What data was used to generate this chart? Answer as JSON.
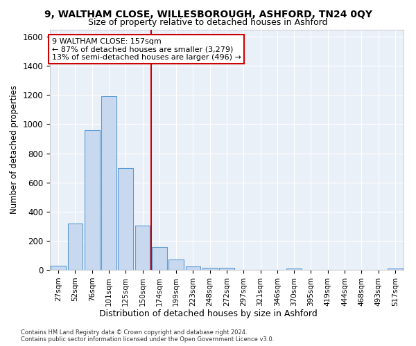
{
  "title1": "9, WALTHAM CLOSE, WILLESBOROUGH, ASHFORD, TN24 0QY",
  "title2": "Size of property relative to detached houses in Ashford",
  "xlabel": "Distribution of detached houses by size in Ashford",
  "ylabel": "Number of detached properties",
  "bar_labels": [
    "27sqm",
    "52sqm",
    "76sqm",
    "101sqm",
    "125sqm",
    "150sqm",
    "174sqm",
    "199sqm",
    "223sqm",
    "248sqm",
    "272sqm",
    "297sqm",
    "321sqm",
    "346sqm",
    "370sqm",
    "395sqm",
    "419sqm",
    "444sqm",
    "468sqm",
    "493sqm",
    "517sqm"
  ],
  "bar_values": [
    30,
    320,
    960,
    1190,
    700,
    305,
    155,
    70,
    25,
    15,
    15,
    0,
    0,
    0,
    10,
    0,
    0,
    0,
    0,
    0,
    10
  ],
  "bar_color": "#c8d9ef",
  "bar_edge_color": "#5b9bd5",
  "vline_x": 5.5,
  "vline_color": "#cc0000",
  "annotation_text": "9 WALTHAM CLOSE: 157sqm\n← 87% of detached houses are smaller (3,279)\n13% of semi-detached houses are larger (496) →",
  "annotation_box_color": "#ffffff",
  "annotation_box_edge": "#cc0000",
  "ylim": [
    0,
    1650
  ],
  "yticks": [
    0,
    200,
    400,
    600,
    800,
    1000,
    1200,
    1400,
    1600
  ],
  "footer1": "Contains HM Land Registry data © Crown copyright and database right 2024.",
  "footer2": "Contains public sector information licensed under the Open Government Licence v3.0.",
  "bg_color": "#ffffff",
  "plot_bg_color": "#eaf0f8",
  "grid_color": "#ffffff"
}
